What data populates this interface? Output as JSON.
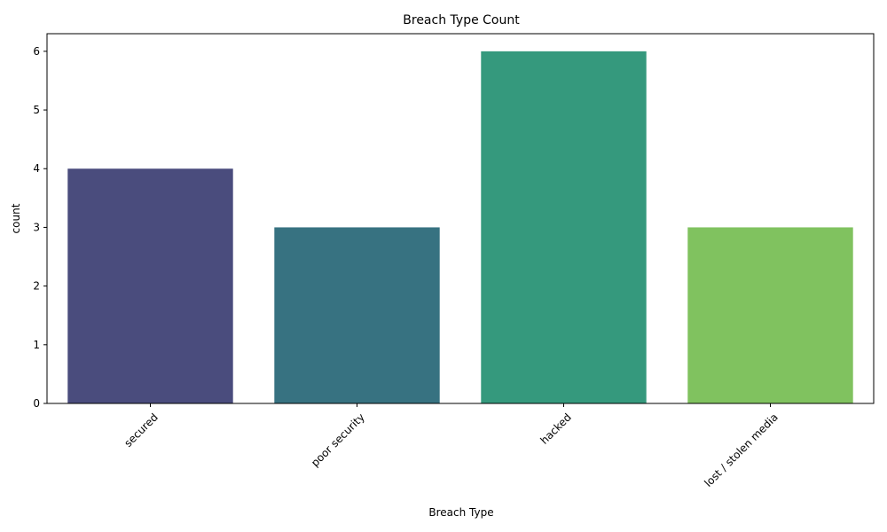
{
  "chart_data": {
    "type": "bar",
    "title": "Breach Type Count",
    "xlabel": "Breach Type",
    "ylabel": "count",
    "categories": [
      "secured",
      "poor security",
      "hacked",
      "lost / stolen media"
    ],
    "values": [
      4,
      3,
      6,
      3
    ],
    "colors": [
      "#4a4c7d",
      "#377281",
      "#35997d",
      "#80c25f"
    ],
    "ylim": [
      0,
      6.3
    ],
    "yticks": [
      "0",
      "1",
      "2",
      "3",
      "4",
      "5",
      "6"
    ],
    "grid": false,
    "legend": "none"
  }
}
